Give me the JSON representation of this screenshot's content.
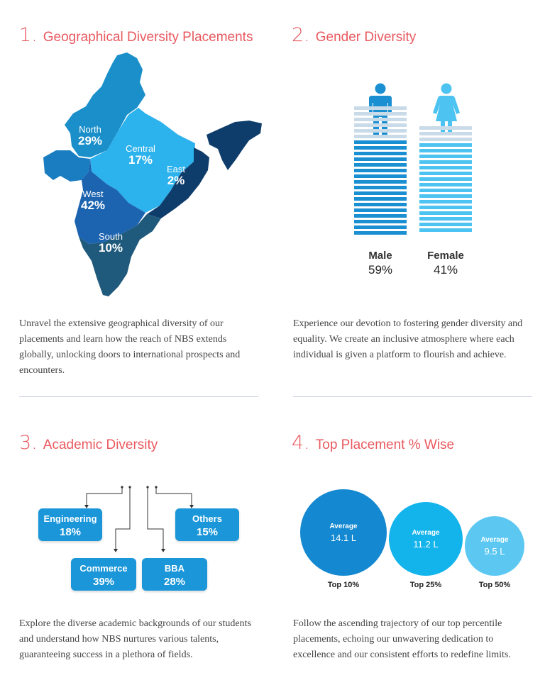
{
  "sections": [
    {
      "number": "1.",
      "title": "Geographical Diversity Placements",
      "text": "Unravel the extensive geographical diversity of our placements and learn how the reach of NBS extends globally, unlocking doors to international prospects and encounters."
    },
    {
      "number": "2.",
      "title": "Gender Diversity",
      "text": "Experience our devotion to fostering gender diversity and equality. We create an inclusive atmosphere where each individual is given a platform to flourish and achieve."
    },
    {
      "number": "3.",
      "title": "Academic Diversity",
      "text": "Explore the diverse academic backgrounds of our students and understand how NBS nurtures various talents, guaranteeing success in a plethora of fields."
    },
    {
      "number": "4.",
      "title": "Top Placement % Wise",
      "text": "Follow the ascending trajectory of our top percentile placements, echoing our unwavering dedication to excellence and our consistent efforts to redefine limits."
    }
  ],
  "map": {
    "regions": [
      {
        "name": "North",
        "value": "29%",
        "color": "#1a8fc9"
      },
      {
        "name": "Central",
        "value": "17%",
        "color": "#2cb2ec"
      },
      {
        "name": "East",
        "value": "2%",
        "color": "#0f3d6b"
      },
      {
        "name": "West",
        "value": "42%",
        "color": "#1c63b0"
      },
      {
        "name": "South",
        "value": "10%",
        "color": "#1f5a7c"
      }
    ]
  },
  "gender": {
    "male": {
      "label": "Male",
      "value": "59%",
      "fill_fraction": 0.59,
      "color": "#1a8fd1",
      "light": "#c9dbe8"
    },
    "female": {
      "label": "Female",
      "value": "41%",
      "fill_fraction": 0.41,
      "color": "#4cc3f0",
      "light": "#c9dbe8"
    }
  },
  "academic": {
    "engineering": {
      "label": "Engineering",
      "value": "18%"
    },
    "others": {
      "label": "Others",
      "value": "15%"
    },
    "commerce": {
      "label": "Commerce",
      "value": "39%"
    },
    "bba": {
      "label": "BBA",
      "value": "28%"
    }
  },
  "placements": [
    {
      "average_label": "Average",
      "value": "14.1 L",
      "tier": "Top 10%",
      "color": "#1488d0"
    },
    {
      "average_label": "Average",
      "value": "11.2 L",
      "tier": "Top 25%",
      "color": "#12b4eb"
    },
    {
      "average_label": "Average",
      "value": "9.5 L",
      "tier": "Top 50%",
      "color": "#5cc8f2"
    }
  ]
}
